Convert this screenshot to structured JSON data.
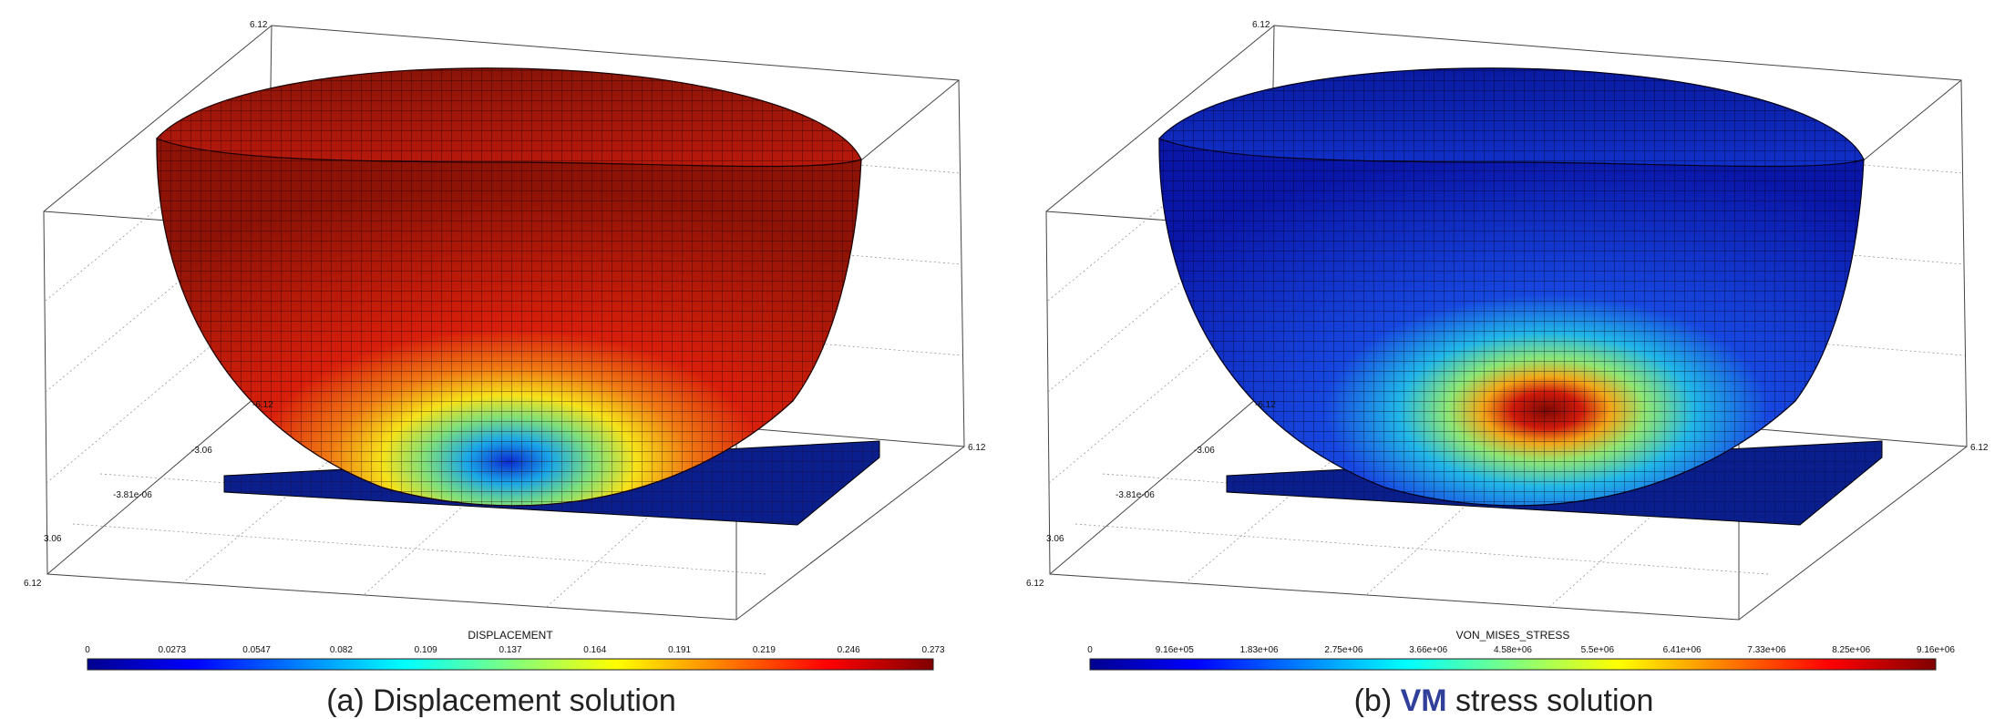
{
  "panels": [
    {
      "id": "a",
      "field": "DISPLACEMENT",
      "ticks": [
        "0",
        "0.0273",
        "0.0547",
        "0.082",
        "0.109",
        "0.137",
        "0.164",
        "0.191",
        "0.219",
        "0.246",
        "0.273"
      ],
      "caption_prefix": "(a) Displacement solution",
      "caption_highlight": "",
      "caption_suffix": "",
      "axis_labels": {
        "top": "6.12",
        "left_bottom": "6.12",
        "right": "6.12",
        "y1": "-6.12",
        "y2": "-3.06",
        "y3": "-3.81e-06",
        "y4": "3.06"
      },
      "colormap": "jet"
    },
    {
      "id": "b",
      "field": "VON_MISES_STRESS",
      "ticks": [
        "0",
        "9.16e+05",
        "1.83e+06",
        "2.75e+06",
        "3.66e+06",
        "4.58e+06",
        "5.5e+06",
        "6.41e+06",
        "7.33e+06",
        "8.25e+06",
        "9.16e+06"
      ],
      "caption_prefix": "(b) ",
      "caption_highlight": "VM",
      "caption_suffix": " stress solution",
      "axis_labels": {
        "top": "6.12",
        "left_bottom": "6.12",
        "right": "6.12",
        "y1": "-6.12",
        "y2": "-3.06",
        "y3": "-3.81e-06",
        "y4": "3.06"
      },
      "colormap": "jet"
    }
  ]
}
